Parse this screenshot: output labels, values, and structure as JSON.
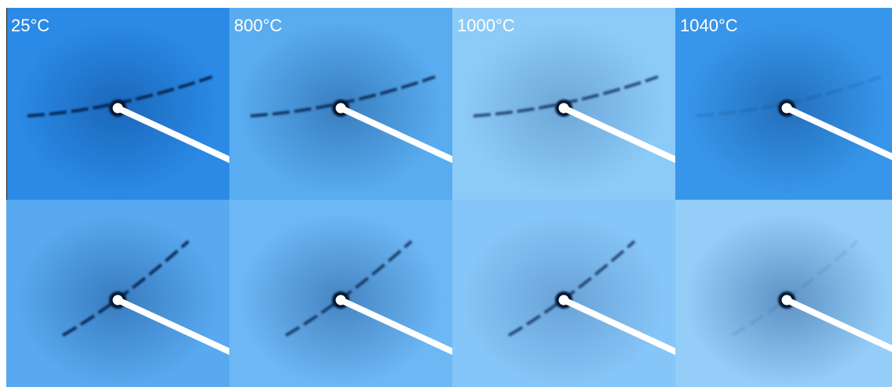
{
  "panels": [
    {
      "label": "25°C"
    },
    {
      "label": "800°C"
    },
    {
      "label": "1000°C"
    },
    {
      "label": "1040°C"
    }
  ]
}
